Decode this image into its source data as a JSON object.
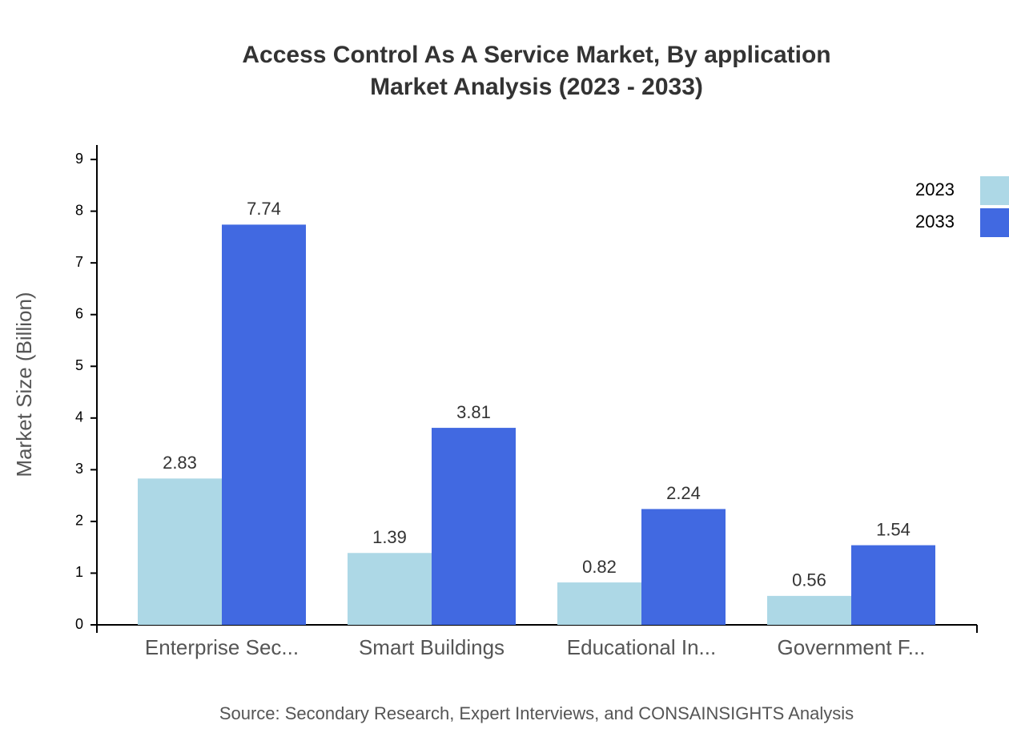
{
  "chart_data": {
    "type": "bar",
    "title": "Access Control As A Service Market, By application",
    "subtitle": "Market Analysis (2023 - 2033)",
    "y_label": "Market Size (Billion)",
    "source": "Source: Secondary Research, Expert Interviews, and CONSAINSIGHTS Analysis",
    "categories": [
      "Enterprise Sec...",
      "Smart Buildings",
      "Educational In...",
      "Government F..."
    ],
    "series": [
      {
        "name": "2023",
        "color": "#add8e6",
        "values": [
          2.83,
          1.39,
          0.82,
          0.56
        ]
      },
      {
        "name": "2033",
        "color": "#4169e1",
        "values": [
          7.74,
          3.81,
          2.24,
          1.54
        ]
      }
    ],
    "ylim": [
      0,
      9.28
    ],
    "yticks": [
      0,
      1,
      2,
      3,
      4,
      5,
      6,
      7,
      8,
      9
    ],
    "legend": "top-right"
  }
}
